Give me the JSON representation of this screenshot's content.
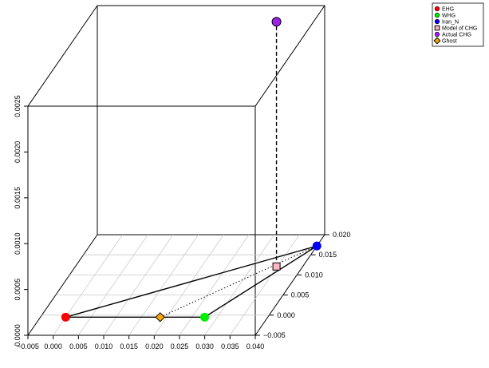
{
  "chart_data": {
    "type": "scatter",
    "projection": "3d",
    "title": "",
    "xlabel": "",
    "ylabel": "",
    "zlabel": "",
    "xlim": [
      -0.005,
      0.04
    ],
    "ylim": [
      -0.005,
      0.02
    ],
    "zlim": [
      0,
      0.0025
    ],
    "x_ticks": [
      "−0.005",
      "0.000",
      "0.005",
      "0.010",
      "0.015",
      "0.020",
      "0.025",
      "0.030",
      "0.035",
      "0.040"
    ],
    "y_ticks": [
      "−0.005",
      "0.000",
      "0.005",
      "0.010",
      "0.015",
      "0.020"
    ],
    "z_ticks": [
      "0.0000",
      "0.0005",
      "0.0010",
      "0.0015",
      "0.0020",
      "0.0025"
    ],
    "grid": "floor",
    "legend_position": "top-right",
    "series": [
      {
        "name": "EHG",
        "color": "#ff0000",
        "marker": "circle",
        "x": 0.0,
        "y": -0.0005,
        "z": 0
      },
      {
        "name": "WHG",
        "color": "#00ee00",
        "marker": "circle",
        "x": 0.0275,
        "y": -0.0005,
        "z": 0
      },
      {
        "name": "Iran_N",
        "color": "#0000ff",
        "marker": "circle",
        "x": 0.04,
        "y": 0.0172,
        "z": 0
      },
      {
        "name": "Model of CHG",
        "color": "#ffb6c1",
        "marker": "square",
        "x": 0.0348,
        "y": 0.0121,
        "z": 0
      },
      {
        "name": "Actual CHG",
        "color": "#a020f0",
        "marker": "circle",
        "x": 0.0348,
        "y": 0.0121,
        "z": 0.00267
      },
      {
        "name": "Ghost",
        "color": "#ffa500",
        "marker": "diamond",
        "x": 0.0187,
        "y": -0.0005,
        "z": 0
      }
    ],
    "lines": [
      {
        "from": "EHG",
        "to": "WHG",
        "style": "solid"
      },
      {
        "from": "WHG",
        "to": "Iran_N",
        "style": "solid"
      },
      {
        "from": "Iran_N",
        "to": "EHG",
        "style": "solid"
      },
      {
        "from": "Ghost",
        "to": "Iran_N",
        "style": "dotted"
      },
      {
        "from": "Model of CHG",
        "to": "Actual CHG",
        "style": "dashed"
      }
    ]
  }
}
